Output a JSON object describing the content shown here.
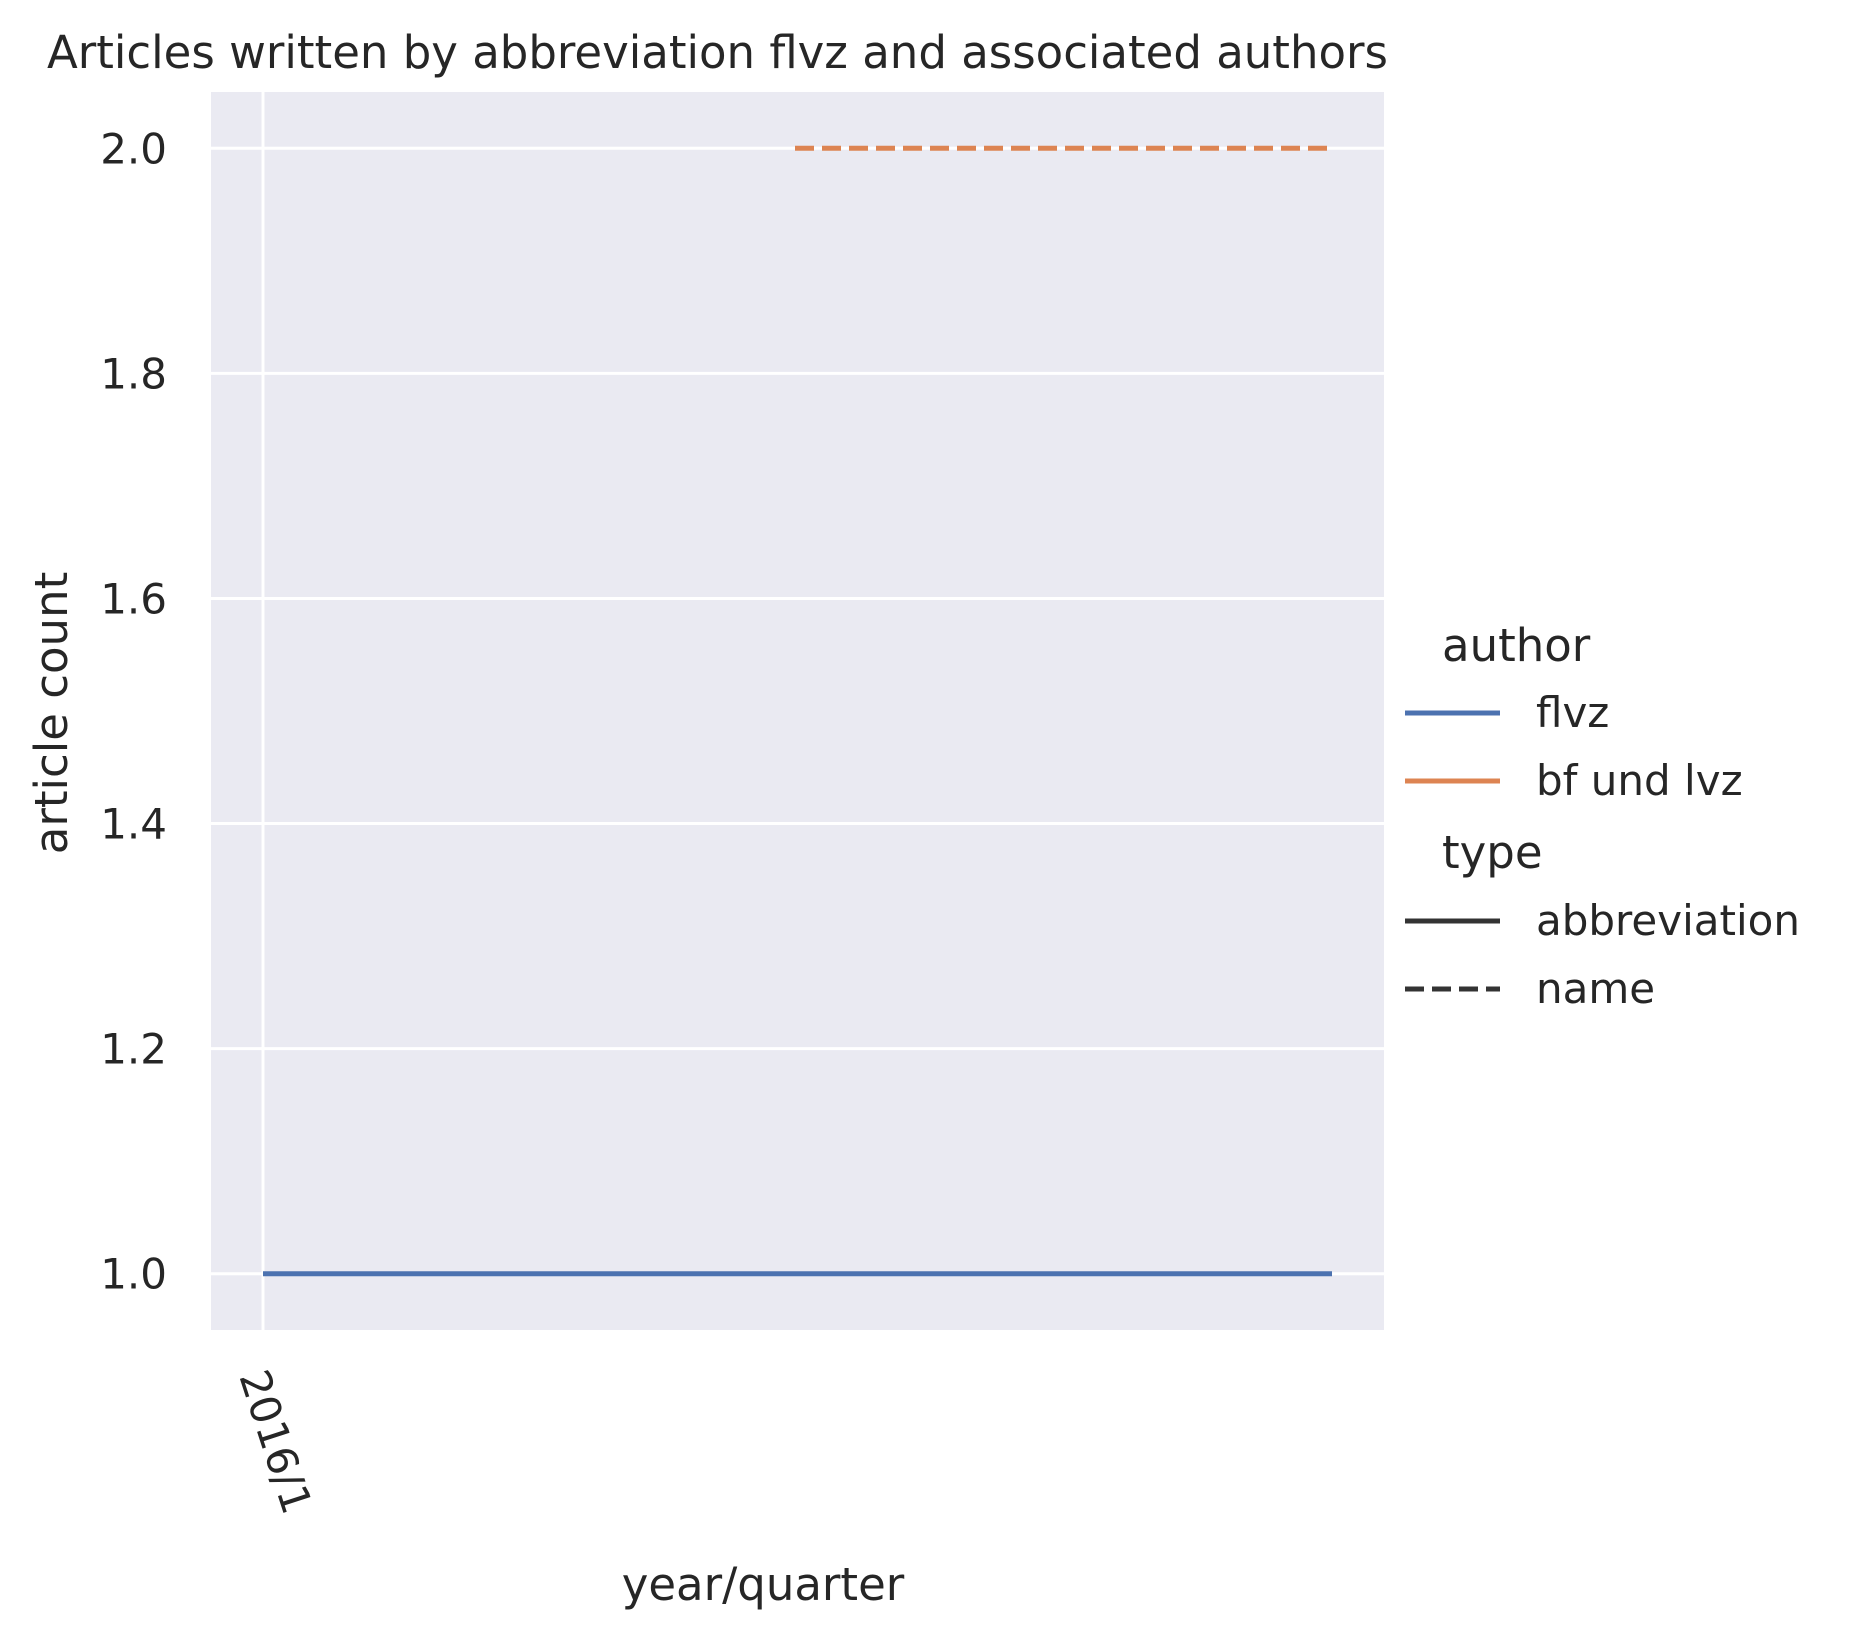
{
  "chart_data": {
    "type": "line",
    "title": "Articles written by abbreviation flvz and associated authors",
    "xlabel": "year/quarter",
    "ylabel": "article count",
    "x_ticks": [
      "2016/1"
    ],
    "y_ticks": [
      "1.0",
      "1.2",
      "1.4",
      "1.6",
      "1.8",
      "2.0"
    ],
    "ylim": [
      0.95,
      2.05
    ],
    "grid": true,
    "background": "#eaeaf2",
    "series": [
      {
        "name": "flvz",
        "type": "abbreviation",
        "color": "#4c72b0",
        "dash": "solid",
        "y": 1.0
      },
      {
        "name": "bf und lvz",
        "type": "name",
        "color": "#dd8452",
        "dash": "dashed",
        "y": 2.0
      }
    ],
    "legend": {
      "placement": "right",
      "author_title": "author",
      "author_entries": [
        {
          "label": "flvz",
          "color": "#4c72b0"
        },
        {
          "label": "bf und lvz",
          "color": "#dd8452"
        }
      ],
      "type_title": "type",
      "type_entries": [
        {
          "label": "abbreviation",
          "dash": "solid"
        },
        {
          "label": "name",
          "dash": "dashed"
        }
      ]
    }
  }
}
